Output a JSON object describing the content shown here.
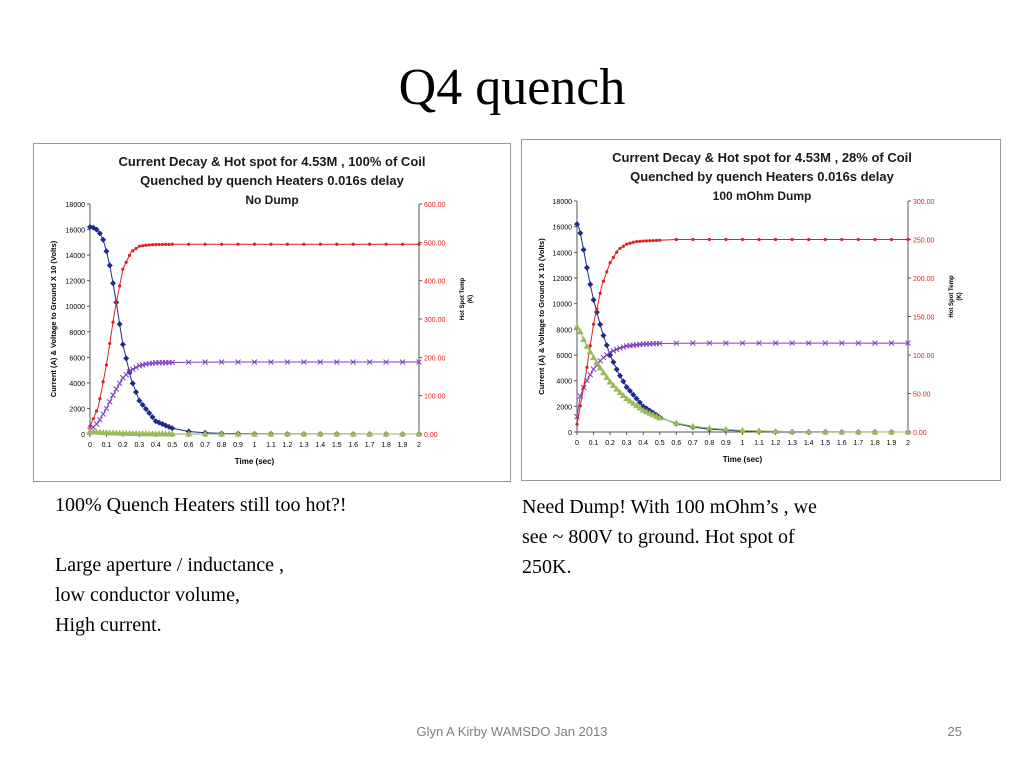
{
  "slide": {
    "title": "Q4 quench",
    "footer": "Glyn A Kirby  WAMSDO Jan 2013",
    "page_number": "25"
  },
  "captions": {
    "left": [
      "100% Quench Heaters still too hot?!",
      "",
      "Large aperture / inductance ,",
      "low conductor volume,",
      "High current."
    ],
    "right": [
      "Need Dump!  With 100 mOhm’s , we",
      "see ~ 800V to ground. Hot spot of",
      "250K."
    ]
  },
  "colors": {
    "current": "#1f2a8c",
    "voltage": "#7a3fbf",
    "temp": "#e02020",
    "green": "#9bbb59",
    "right_axis": "#e02020"
  },
  "chart_data": [
    {
      "type": "line",
      "title_lines": [
        "Current Decay & Hot spot for 4.53M , 100% of Coil",
        "Quenched by quench Heaters 0.016s delay",
        "No Dump"
      ],
      "xlabel": "Time (sec)",
      "ylabel": "Current (A) & Voltage to Ground X 10 (Volts)",
      "y2label": "Hot Spot Temp (K)",
      "xlim": [
        0,
        2
      ],
      "ylim": [
        0,
        18000
      ],
      "y2lim": [
        0,
        600
      ],
      "x_ticks": [
        "0",
        "0.1",
        "0.2",
        "0.3",
        "0.4",
        "0.5",
        "0.6",
        "0.7",
        "0.8",
        "0.9",
        "1",
        "1.1",
        "1.2",
        "1.3",
        "1.4",
        "1.5",
        "1.6",
        "1.7",
        "1.8",
        "1.9",
        "2"
      ],
      "y_ticks": [
        "0",
        "2000",
        "4000",
        "6000",
        "8000",
        "10000",
        "12000",
        "14000",
        "16000",
        "18000"
      ],
      "y2_ticks": [
        "0.00",
        "100.00",
        "200.00",
        "300.00",
        "400.00",
        "500.00",
        "600.00"
      ],
      "series": [
        {
          "key": "current",
          "axis": "left",
          "marker": "diamond",
          "x": [
            0,
            0.02,
            0.04,
            0.06,
            0.08,
            0.1,
            0.12,
            0.14,
            0.16,
            0.18,
            0.2,
            0.25,
            0.3,
            0.4,
            0.5,
            0.6,
            0.7,
            0.8,
            1.0,
            1.2,
            1.5,
            2.0
          ],
          "y": [
            16200,
            16150,
            16000,
            15700,
            15200,
            14300,
            13200,
            11800,
            10300,
            8600,
            7000,
            4300,
            2600,
            1000,
            450,
            200,
            100,
            50,
            20,
            10,
            5,
            0
          ]
        },
        {
          "key": "voltage",
          "axis": "left",
          "marker": "x",
          "x": [
            0,
            0.05,
            0.1,
            0.15,
            0.2,
            0.25,
            0.3,
            0.35,
            0.4,
            0.5,
            0.6,
            0.8,
            1.0,
            1.2,
            1.5,
            2.0
          ],
          "y": [
            300,
            900,
            2000,
            3300,
            4400,
            5000,
            5350,
            5500,
            5570,
            5600,
            5620,
            5630,
            5630,
            5630,
            5630,
            5630
          ]
        },
        {
          "key": "temp",
          "axis": "right",
          "marker": "dot",
          "x": [
            0,
            0.05,
            0.1,
            0.15,
            0.2,
            0.25,
            0.3,
            0.35,
            0.4,
            0.5,
            0.6,
            0.8,
            1.0,
            1.5,
            2.0
          ],
          "y": [
            20,
            70,
            180,
            320,
            430,
            475,
            490,
            493,
            494,
            495,
            495,
            495,
            495,
            495,
            495
          ]
        },
        {
          "key": "green",
          "axis": "left",
          "marker": "triangle",
          "x": [
            0,
            0.05,
            0.1,
            0.2,
            0.3,
            0.5,
            1.0,
            1.5,
            2.0
          ],
          "y": [
            200,
            150,
            100,
            60,
            30,
            10,
            0,
            0,
            0
          ]
        }
      ]
    },
    {
      "type": "line",
      "title_lines": [
        "Current Decay & Hot spot for 4.53M , 28% of Coil",
        "Quenched by quench Heaters 0.016s delay",
        "100 mOhm  Dump"
      ],
      "xlabel": "Time (sec)",
      "ylabel": "Current (A) & Voltage to Ground X 10 (Volts)",
      "y2label": "Hot Spot Temp (K)",
      "xlim": [
        0,
        2
      ],
      "ylim": [
        0,
        18000
      ],
      "y2lim": [
        0,
        300
      ],
      "x_ticks": [
        "0",
        "0.1",
        "0.2",
        "0.3",
        "0.4",
        "0.5",
        "0.6",
        "0.7",
        "0.8",
        "0.9",
        "1",
        "1.1",
        "1.2",
        "1.3",
        "1.4",
        "1.5",
        "1.6",
        "1.7",
        "1.8",
        "1.9",
        "2"
      ],
      "y_ticks": [
        "0",
        "2000",
        "4000",
        "6000",
        "8000",
        "10000",
        "12000",
        "14000",
        "16000",
        "18000"
      ],
      "y2_ticks": [
        "0.00",
        "50.00",
        "100.00",
        "150.00",
        "200.00",
        "250.00",
        "300.00"
      ],
      "series": [
        {
          "key": "current",
          "axis": "left",
          "marker": "diamond",
          "x": [
            0,
            0.01,
            0.02,
            0.04,
            0.06,
            0.08,
            0.1,
            0.15,
            0.2,
            0.25,
            0.3,
            0.4,
            0.5,
            0.6,
            0.7,
            0.8,
            1.0,
            1.2,
            1.5,
            2.0
          ],
          "y": [
            16200,
            16000,
            15500,
            14200,
            12800,
            11500,
            10300,
            7900,
            6000,
            4600,
            3500,
            2000,
            1150,
            650,
            380,
            220,
            70,
            25,
            5,
            0
          ]
        },
        {
          "key": "voltage",
          "axis": "left",
          "marker": "x",
          "x": [
            0,
            0.02,
            0.05,
            0.1,
            0.15,
            0.2,
            0.25,
            0.3,
            0.4,
            0.5,
            0.6,
            0.8,
            1.0,
            1.5,
            2.0
          ],
          "y": [
            1200,
            2800,
            3800,
            4900,
            5700,
            6200,
            6500,
            6700,
            6850,
            6900,
            6920,
            6930,
            6930,
            6930,
            6930
          ]
        },
        {
          "key": "temp",
          "axis": "right",
          "marker": "dot",
          "x": [
            0,
            0.05,
            0.1,
            0.15,
            0.2,
            0.25,
            0.3,
            0.35,
            0.4,
            0.5,
            0.6,
            0.8,
            1.0,
            1.5,
            2.0
          ],
          "y": [
            10,
            70,
            140,
            190,
            220,
            237,
            244,
            247,
            248,
            249,
            250,
            250,
            250,
            250,
            250
          ]
        },
        {
          "key": "green",
          "axis": "left",
          "marker": "triangle",
          "x": [
            0,
            0.02,
            0.05,
            0.1,
            0.15,
            0.2,
            0.25,
            0.3,
            0.4,
            0.5,
            0.6,
            0.7,
            0.8,
            1.0,
            1.2,
            1.5,
            2.0
          ],
          "y": [
            8200,
            7800,
            6900,
            5800,
            4800,
            3900,
            3200,
            2600,
            1700,
            1100,
            700,
            450,
            300,
            120,
            50,
            10,
            0
          ]
        }
      ]
    }
  ]
}
